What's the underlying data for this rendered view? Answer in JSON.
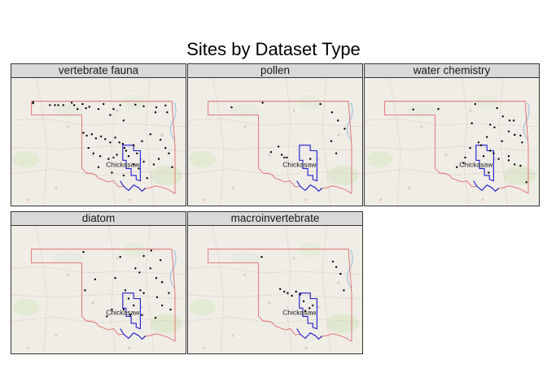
{
  "title": "Sites by Dataset Type",
  "colors": {
    "state_boundary": "#e05a5a",
    "nation_boundary": "#1c1ccc",
    "site": "#000000",
    "strip_bg": "#d9d9d9",
    "basemap": "#efede6"
  },
  "nation_label": "Chickasaw",
  "panels": [
    {
      "label": "vertebrate fauna",
      "sites": [
        [
          -102.9,
          36.98
        ],
        [
          -102.9,
          36.93
        ],
        [
          -101.9,
          36.86
        ],
        [
          -101.6,
          36.86
        ],
        [
          -101.4,
          36.86
        ],
        [
          -101.1,
          36.86
        ],
        [
          -100.6,
          36.95
        ],
        [
          -100.45,
          36.86
        ],
        [
          -100.25,
          36.72
        ],
        [
          -99.95,
          36.9
        ],
        [
          -99.75,
          36.75
        ],
        [
          -99.55,
          36.8
        ],
        [
          -99.0,
          36.72
        ],
        [
          -98.7,
          36.9
        ],
        [
          -98.1,
          36.72
        ],
        [
          -97.7,
          36.86
        ],
        [
          -96.8,
          36.88
        ],
        [
          -96.3,
          36.82
        ],
        [
          -95.6,
          36.6
        ],
        [
          -95.55,
          36.78
        ],
        [
          -95.0,
          36.85
        ],
        [
          -94.9,
          36.6
        ],
        [
          -98.3,
          36.5
        ],
        [
          -97.5,
          36.3
        ],
        [
          -99.9,
          35.85
        ],
        [
          -99.7,
          35.75
        ],
        [
          -99.4,
          35.8
        ],
        [
          -99.15,
          35.65
        ],
        [
          -98.85,
          35.72
        ],
        [
          -98.6,
          35.62
        ],
        [
          -98.3,
          35.5
        ],
        [
          -98.0,
          35.68
        ],
        [
          -97.75,
          35.5
        ],
        [
          -97.55,
          35.45
        ],
        [
          -97.45,
          35.3
        ],
        [
          -97.35,
          35.2
        ],
        [
          -96.9,
          35.4
        ],
        [
          -96.7,
          35.1
        ],
        [
          -96.4,
          35.55
        ],
        [
          -95.9,
          35.8
        ],
        [
          -95.3,
          35.6
        ],
        [
          -95.0,
          35.3
        ],
        [
          -99.6,
          35.3
        ],
        [
          -99.3,
          35.1
        ],
        [
          -98.9,
          35.0
        ],
        [
          -98.4,
          34.9
        ],
        [
          -98.1,
          34.95
        ],
        [
          -97.9,
          35.05
        ],
        [
          -97.2,
          35.0
        ],
        [
          -96.9,
          34.7
        ],
        [
          -96.6,
          34.55
        ],
        [
          -96.3,
          34.8
        ],
        [
          -95.7,
          34.7
        ],
        [
          -95.4,
          34.9
        ],
        [
          -94.8,
          35.1
        ],
        [
          -94.6,
          34.6
        ],
        [
          -99.0,
          34.6
        ],
        [
          -98.2,
          34.4
        ],
        [
          -97.5,
          34.3
        ],
        [
          -96.1,
          34.2
        ]
      ]
    },
    {
      "label": "pollen",
      "sites": [
        [
          -101.6,
          36.78
        ],
        [
          -99.75,
          36.95
        ],
        [
          -96.3,
          36.9
        ],
        [
          -95.6,
          36.6
        ],
        [
          -95.25,
          36.3
        ],
        [
          -94.85,
          36.0
        ],
        [
          -98.8,
          35.35
        ],
        [
          -99.25,
          35.15
        ],
        [
          -98.6,
          35.05
        ],
        [
          -98.45,
          34.95
        ],
        [
          -98.3,
          34.95
        ],
        [
          -96.9,
          34.9
        ],
        [
          -95.65,
          35.55
        ],
        [
          -95.35,
          35.1
        ]
      ]
    },
    {
      "label": "water chemistry",
      "sites": [
        [
          -101.3,
          36.7
        ],
        [
          -99.8,
          36.72
        ],
        [
          -97.6,
          36.9
        ],
        [
          -96.3,
          36.75
        ],
        [
          -95.95,
          36.45
        ],
        [
          -95.55,
          36.3
        ],
        [
          -95.3,
          36.3
        ],
        [
          -96.7,
          36.15
        ],
        [
          -96.45,
          36.05
        ],
        [
          -95.6,
          35.9
        ],
        [
          -95.25,
          35.78
        ],
        [
          -94.9,
          35.75
        ],
        [
          -94.8,
          35.5
        ],
        [
          -96.0,
          35.55
        ],
        [
          -97.4,
          35.5
        ],
        [
          -97.25,
          35.4
        ],
        [
          -97.9,
          35.3
        ],
        [
          -97.1,
          35.0
        ],
        [
          -96.7,
          35.2
        ],
        [
          -96.5,
          35.1
        ],
        [
          -96.2,
          34.9
        ],
        [
          -95.6,
          34.85
        ],
        [
          -95.25,
          34.7
        ],
        [
          -94.9,
          34.65
        ],
        [
          -98.2,
          34.95
        ],
        [
          -98.7,
          34.6
        ],
        [
          -96.8,
          34.4
        ],
        [
          -94.55,
          34.05
        ],
        [
          -95.6,
          35.0
        ],
        [
          -96.9,
          35.7
        ],
        [
          -97.8,
          36.2
        ],
        [
          -98.3,
          34.75
        ]
      ]
    },
    {
      "label": "diatom",
      "sites": [
        [
          -99.9,
          36.9
        ],
        [
          -97.7,
          36.72
        ],
        [
          -96.3,
          36.75
        ],
        [
          -95.85,
          36.95
        ],
        [
          -95.3,
          36.6
        ],
        [
          -96.8,
          36.3
        ],
        [
          -96.55,
          36.15
        ],
        [
          -95.9,
          36.3
        ],
        [
          -95.55,
          35.95
        ],
        [
          -95.2,
          35.8
        ],
        [
          -98.0,
          35.95
        ],
        [
          -99.8,
          35.5
        ],
        [
          -99.2,
          35.9
        ],
        [
          -97.4,
          35.5
        ],
        [
          -97.2,
          35.2
        ],
        [
          -96.5,
          35.5
        ],
        [
          -96.3,
          35.4
        ],
        [
          -95.5,
          35.25
        ],
        [
          -95.2,
          34.95
        ],
        [
          -94.8,
          35.4
        ],
        [
          -96.9,
          34.95
        ],
        [
          -97.5,
          34.8
        ],
        [
          -97.1,
          34.6
        ],
        [
          -96.4,
          34.6
        ],
        [
          -98.2,
          34.8
        ],
        [
          -98.5,
          34.55
        ],
        [
          -95.6,
          34.5
        ],
        [
          -94.7,
          34.8
        ]
      ]
    },
    {
      "label": "macroinvertebrate",
      "sites": [
        [
          -99.8,
          36.72
        ],
        [
          -95.55,
          36.55
        ],
        [
          -95.35,
          36.35
        ],
        [
          -95.1,
          36.1
        ],
        [
          -98.7,
          35.55
        ],
        [
          -98.45,
          35.45
        ],
        [
          -98.25,
          35.4
        ],
        [
          -98.0,
          35.3
        ],
        [
          -97.75,
          35.45
        ],
        [
          -97.5,
          35.35
        ],
        [
          -97.3,
          35.1
        ],
        [
          -97.2,
          34.75
        ],
        [
          -96.95,
          34.85
        ],
        [
          -96.75,
          34.95
        ],
        [
          -94.9,
          35.5
        ]
      ]
    }
  ]
}
